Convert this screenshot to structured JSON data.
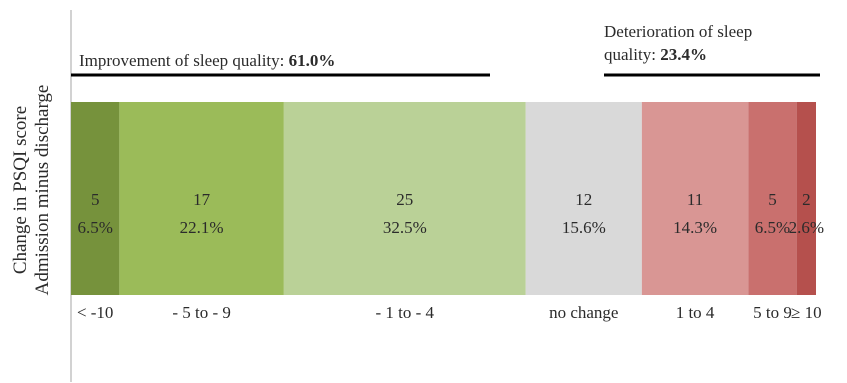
{
  "chart_data": {
    "type": "bar",
    "orientation": "stacked-horizontal",
    "ylabel": [
      "Change in PSQI score",
      "Admission minus discharge"
    ],
    "categories": [
      "< -10",
      "- 5 to - 9",
      "- 1 to - 4",
      "no change",
      "1 to 4",
      "5 to 9",
      "≥ 10"
    ],
    "counts": [
      "5",
      "17",
      "25",
      "12",
      "11",
      "5",
      "2"
    ],
    "values": [
      6.5,
      22.1,
      32.5,
      15.6,
      14.3,
      6.5,
      2.6
    ],
    "percent_labels": [
      "6.5%",
      "22.1%",
      "32.5%",
      "15.6%",
      "14.3%",
      "6.5%",
      "2.6%"
    ],
    "colors": [
      "#76923c",
      "#9bbb59",
      "#bad197",
      "#d9d9d9",
      "#d99694",
      "#c9706e",
      "#b5504d"
    ],
    "annotations": {
      "improvement": {
        "label": "Improvement of sleep quality: ",
        "value": "61.0%"
      },
      "deterioration": {
        "label_line1": "Deterioration of sleep",
        "label_line2": "quality: ",
        "value": "23.4%"
      }
    }
  }
}
